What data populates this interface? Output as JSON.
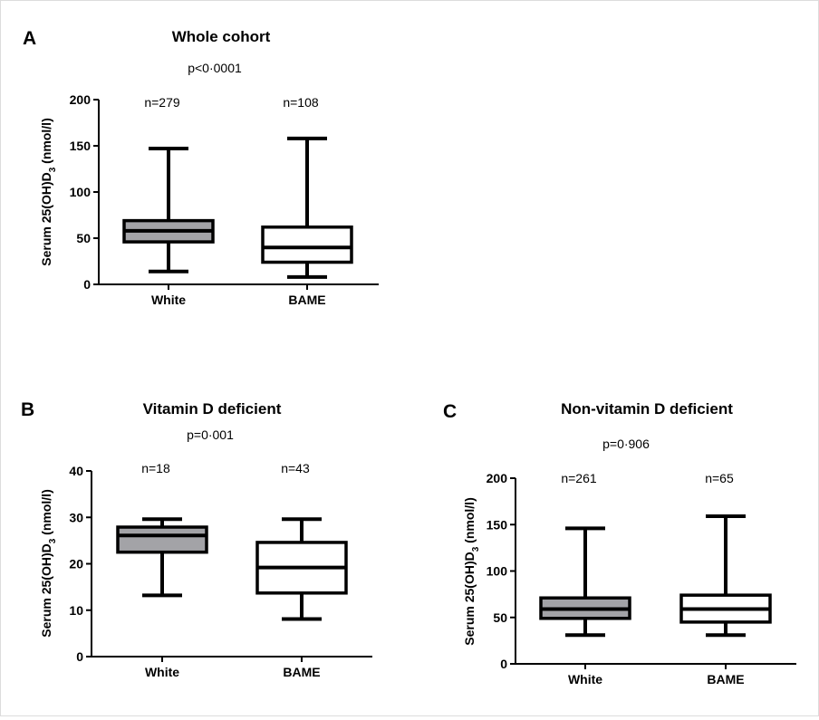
{
  "chart_data": [
    {
      "type": "box",
      "panel_label": "A",
      "title": "Whole cohort",
      "p_value": "p<0·0001",
      "ylabel_main": "Serum 25(OH)D",
      "ylabel_sub": "3",
      "ylabel_unit": " (nmol/l)",
      "ylim": [
        0,
        200
      ],
      "yticks": [
        0,
        50,
        100,
        150,
        200
      ],
      "categories": [
        "White",
        "BAME"
      ],
      "n_labels": [
        "n=279",
        "n=108"
      ],
      "fills": [
        "#a3a3a7",
        "#ffffff"
      ],
      "boxes": [
        {
          "min": 14,
          "q1": 46,
          "median": 58,
          "q3": 69,
          "max": 147
        },
        {
          "min": 8,
          "q1": 24,
          "median": 40,
          "q3": 62,
          "max": 158
        }
      ]
    },
    {
      "type": "box",
      "panel_label": "B",
      "title": "Vitamin D deficient",
      "p_value": "p=0·001",
      "ylabel_main": "Serum 25(OH)D",
      "ylabel_sub": "3",
      "ylabel_unit": " (nmol/l)",
      "ylim": [
        0,
        40
      ],
      "yticks": [
        0,
        10,
        20,
        30,
        40
      ],
      "categories": [
        "White",
        "BAME"
      ],
      "n_labels": [
        "n=18",
        "n=43"
      ],
      "fills": [
        "#a3a3a7",
        "#ffffff"
      ],
      "boxes": [
        {
          "min": 13.2,
          "q1": 22.5,
          "median": 26.1,
          "q3": 27.9,
          "max": 29.6
        },
        {
          "min": 8.1,
          "q1": 13.7,
          "median": 19.2,
          "q3": 24.6,
          "max": 29.6
        }
      ]
    },
    {
      "type": "box",
      "panel_label": "C",
      "title": "Non-vitamin D deficient",
      "p_value": "p=0·906",
      "ylabel_main": "Serum 25(OH)D",
      "ylabel_sub": "3",
      "ylabel_unit": " (nmol/l)",
      "ylim": [
        0,
        200
      ],
      "yticks": [
        0,
        50,
        100,
        150,
        200
      ],
      "categories": [
        "White",
        "BAME"
      ],
      "n_labels": [
        "n=261",
        "n=65"
      ],
      "fills": [
        "#a3a3a7",
        "#ffffff"
      ],
      "boxes": [
        {
          "min": 31,
          "q1": 49,
          "median": 59,
          "q3": 71,
          "max": 146
        },
        {
          "min": 31,
          "q1": 45,
          "median": 59,
          "q3": 74,
          "max": 159
        }
      ]
    }
  ]
}
